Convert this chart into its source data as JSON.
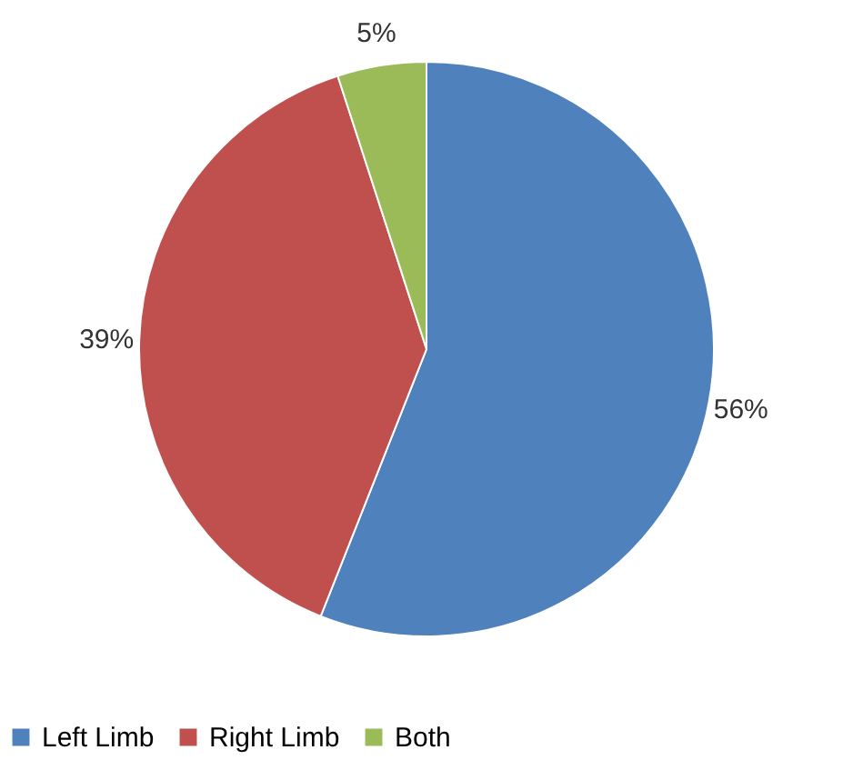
{
  "chart_data": {
    "type": "pie",
    "categories": [
      "Left Limb",
      "Right Limb",
      "Both"
    ],
    "values": [
      56,
      39,
      5
    ],
    "value_labels": [
      "56%",
      "39%",
      "5%"
    ],
    "colors": [
      "#4f81bd",
      "#c0504d",
      "#9bbb59"
    ],
    "legend": "bottom"
  }
}
